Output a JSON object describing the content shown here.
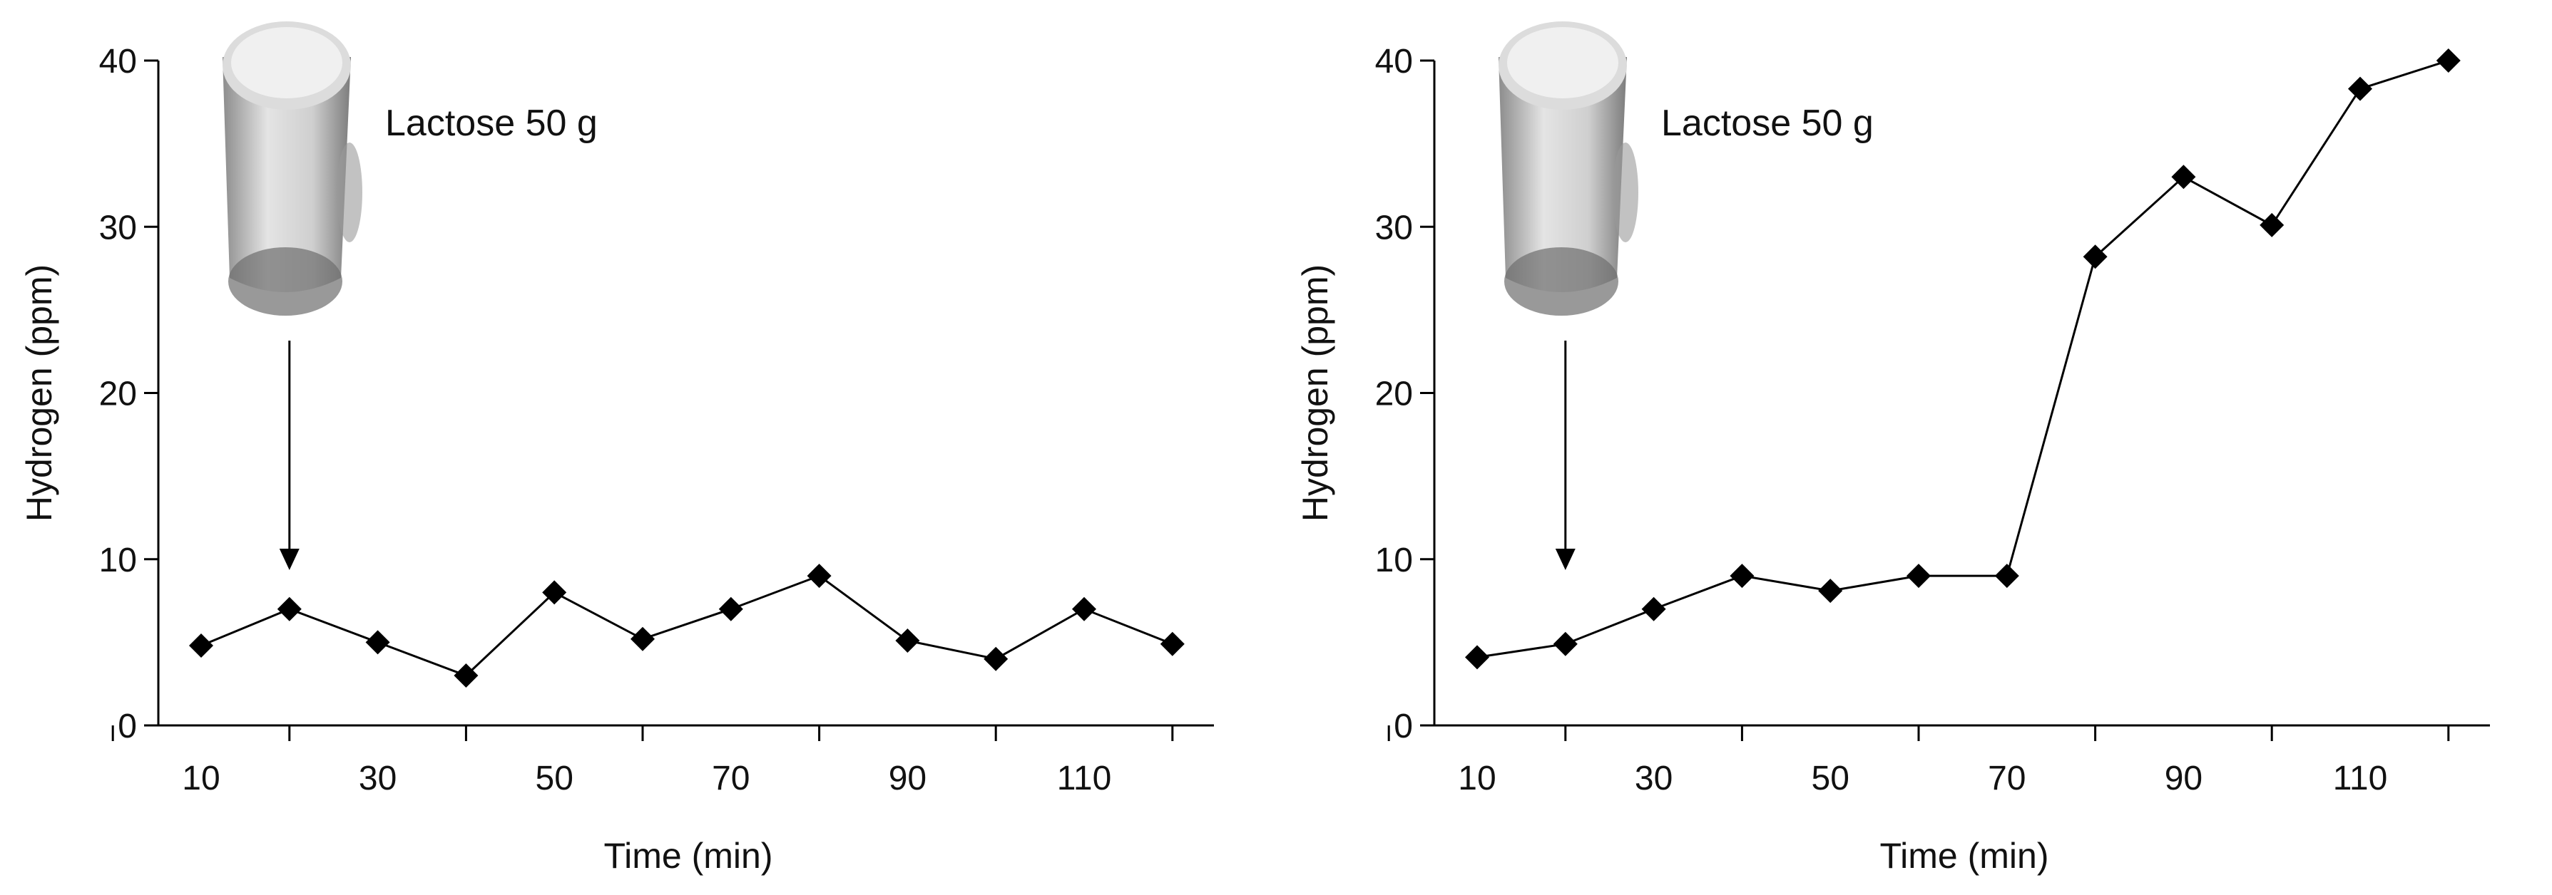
{
  "chart_data": [
    {
      "type": "line",
      "title": "",
      "xlabel": "Time (min)",
      "ylabel": "Hydrogen (ppm)",
      "xlim": [
        0,
        120
      ],
      "ylim": [
        0,
        40
      ],
      "xticks": [
        10,
        30,
        50,
        70,
        90,
        110
      ],
      "yticks": [
        0,
        10,
        20,
        30,
        40
      ],
      "annotation": {
        "text": "Lactose 50 g",
        "arrow_at_x": 20,
        "icon": "milk-glass-icon"
      },
      "series": [
        {
          "x": [
            10,
            20,
            30,
            40,
            50,
            60,
            70,
            80,
            90,
            100,
            110,
            120
          ],
          "y": [
            4.8,
            7,
            5,
            3,
            8,
            5.2,
            7,
            9,
            5.1,
            4,
            7,
            4.9
          ]
        }
      ]
    },
    {
      "type": "line",
      "title": "",
      "xlabel": "Time (min)",
      "ylabel": "Hydrogen (ppm)",
      "xlim": [
        0,
        120
      ],
      "ylim": [
        0,
        40
      ],
      "xticks": [
        10,
        30,
        50,
        70,
        90,
        110
      ],
      "yticks": [
        0,
        10,
        20,
        30,
        40
      ],
      "annotation": {
        "text": "Lactose 50 g",
        "arrow_at_x": 20,
        "icon": "milk-glass-icon"
      },
      "series": [
        {
          "x": [
            10,
            20,
            30,
            40,
            50,
            60,
            70,
            80,
            90,
            100,
            110,
            120
          ],
          "y": [
            4.1,
            4.9,
            7,
            9,
            8.1,
            9,
            9,
            28.2,
            33,
            30.1,
            38.3,
            40
          ]
        }
      ]
    }
  ]
}
